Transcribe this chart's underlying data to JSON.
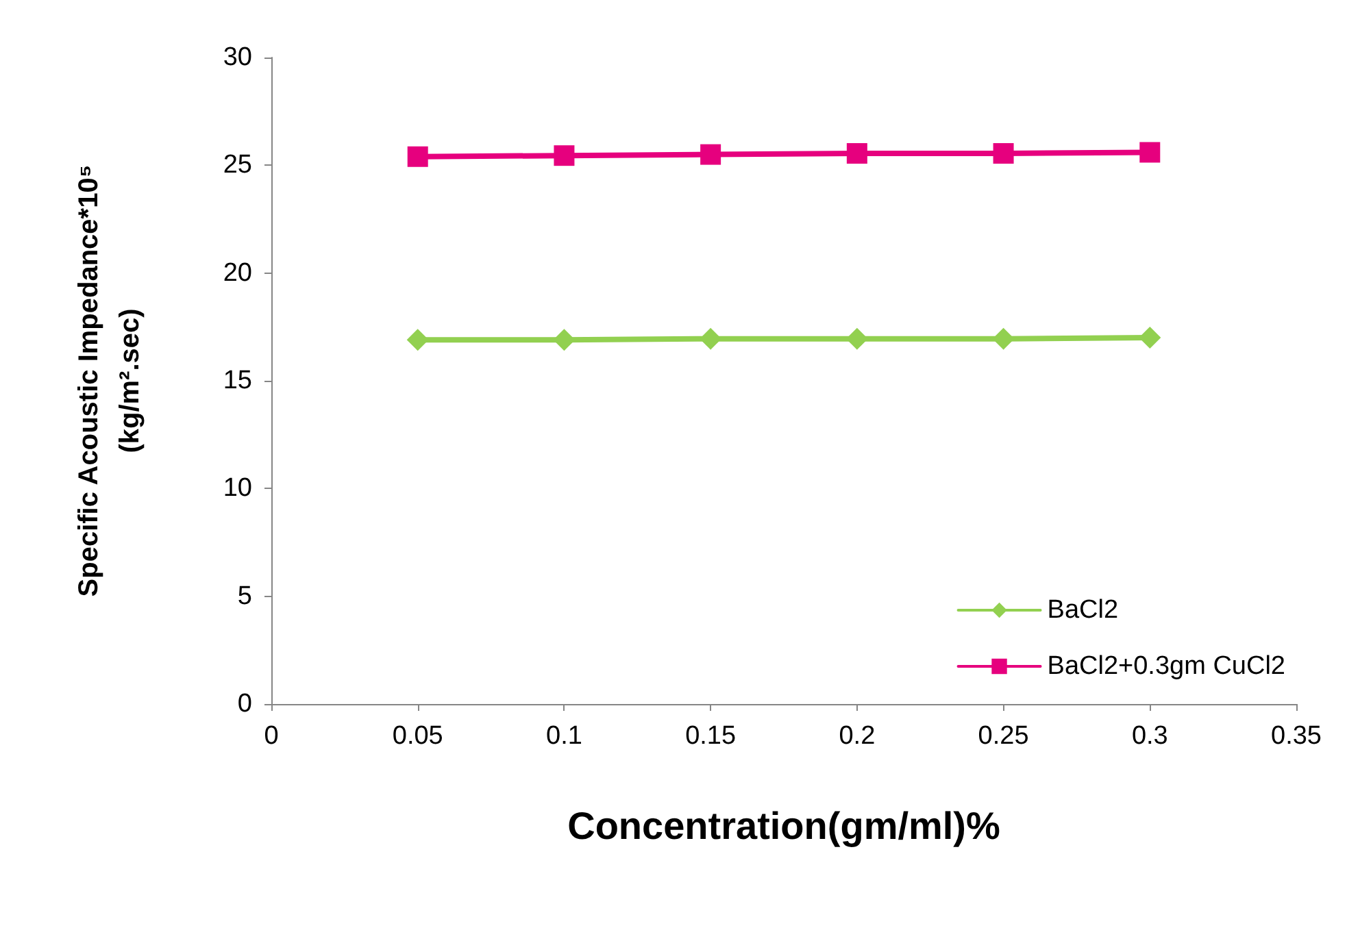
{
  "chart_data": {
    "type": "line",
    "xlabel": "Concentration(gm/ml)%",
    "ylabel": "Specific Acoustic Impedance*10⁵\n(kg/m².sec)",
    "x": [
      0.05,
      0.1,
      0.15,
      0.2,
      0.25,
      0.3
    ],
    "series": [
      {
        "name": "BaCl2",
        "color": "#92d050",
        "marker": "diamond",
        "values": [
          16.9,
          16.9,
          16.95,
          16.95,
          16.95,
          17.0
        ]
      },
      {
        "name": "BaCl2+0.3gm CuCl2",
        "color": "#e6007e",
        "marker": "square",
        "values": [
          25.4,
          25.45,
          25.5,
          25.55,
          25.55,
          25.6
        ]
      }
    ],
    "xlim": [
      0,
      0.35
    ],
    "xticks": [
      0,
      0.05,
      0.1,
      0.15,
      0.2,
      0.25,
      0.3,
      0.35
    ],
    "ylim": [
      0,
      30
    ],
    "yticks": [
      0,
      5,
      10,
      15,
      20,
      25,
      30
    ],
    "grid": false,
    "legend": "bottom right"
  }
}
